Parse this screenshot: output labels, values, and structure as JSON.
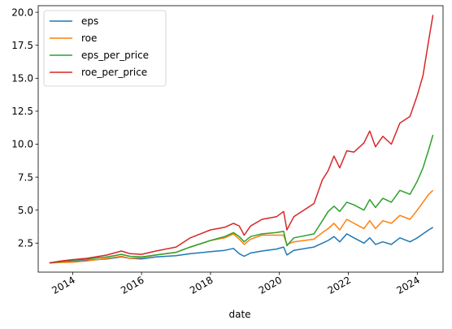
{
  "chart_data": {
    "type": "line",
    "xlabel": "date",
    "ylabel": "",
    "xlim": [
      "2013-01-01",
      "2024-09-30"
    ],
    "ylim": [
      0.3,
      20.5
    ],
    "x_ticks": [
      "2014-01-01",
      "2016-01-01",
      "2018-01-01",
      "2020-01-01",
      "2022-01-01",
      "2024-01-01"
    ],
    "x_tick_labels": [
      "2014",
      "2016",
      "2018",
      "2020",
      "2022",
      "2024"
    ],
    "y_ticks": [
      2.5,
      5.0,
      7.5,
      10.0,
      12.5,
      15.0,
      17.5,
      20.0
    ],
    "y_tick_labels": [
      "2.5",
      "5.0",
      "7.5",
      "10.0",
      "12.5",
      "15.0",
      "17.5",
      "20.0"
    ],
    "grid": false,
    "legend_position": "top-left",
    "series": [
      {
        "name": "eps",
        "color": "#1f77b4",
        "points": [
          [
            "2013-05-01",
            1.0
          ],
          [
            "2013-09-01",
            1.05
          ],
          [
            "2014-01-01",
            1.1
          ],
          [
            "2014-06-01",
            1.2
          ],
          [
            "2015-01-01",
            1.3
          ],
          [
            "2015-06-01",
            1.45
          ],
          [
            "2015-09-01",
            1.35
          ],
          [
            "2016-01-01",
            1.3
          ],
          [
            "2016-06-01",
            1.45
          ],
          [
            "2017-01-01",
            1.55
          ],
          [
            "2017-06-01",
            1.7
          ],
          [
            "2018-01-01",
            1.85
          ],
          [
            "2018-06-01",
            1.95
          ],
          [
            "2018-09-01",
            2.1
          ],
          [
            "2018-11-01",
            1.7
          ],
          [
            "2018-12-24",
            1.5
          ],
          [
            "2019-03-01",
            1.75
          ],
          [
            "2019-07-01",
            1.9
          ],
          [
            "2019-12-01",
            2.05
          ],
          [
            "2020-02-15",
            2.2
          ],
          [
            "2020-03-20",
            1.6
          ],
          [
            "2020-06-01",
            1.95
          ],
          [
            "2021-01-01",
            2.2
          ],
          [
            "2021-04-01",
            2.5
          ],
          [
            "2021-06-01",
            2.7
          ],
          [
            "2021-08-01",
            3.0
          ],
          [
            "2021-10-01",
            2.6
          ],
          [
            "2021-12-15",
            3.2
          ],
          [
            "2022-03-01",
            2.9
          ],
          [
            "2022-06-15",
            2.5
          ],
          [
            "2022-08-15",
            2.9
          ],
          [
            "2022-10-15",
            2.4
          ],
          [
            "2023-01-01",
            2.6
          ],
          [
            "2023-04-01",
            2.4
          ],
          [
            "2023-07-01",
            2.9
          ],
          [
            "2023-10-15",
            2.6
          ],
          [
            "2024-01-01",
            2.9
          ],
          [
            "2024-03-01",
            3.2
          ],
          [
            "2024-05-01",
            3.5
          ],
          [
            "2024-06-15",
            3.7
          ]
        ]
      },
      {
        "name": "roe",
        "color": "#ff7f0e",
        "points": [
          [
            "2013-05-01",
            1.0
          ],
          [
            "2013-09-01",
            1.03
          ],
          [
            "2014-01-01",
            1.05
          ],
          [
            "2014-06-01",
            1.15
          ],
          [
            "2015-01-01",
            1.35
          ],
          [
            "2015-06-01",
            1.5
          ],
          [
            "2015-09-01",
            1.35
          ],
          [
            "2016-01-01",
            1.4
          ],
          [
            "2016-06-01",
            1.6
          ],
          [
            "2017-01-01",
            1.8
          ],
          [
            "2017-06-01",
            2.2
          ],
          [
            "2018-01-01",
            2.7
          ],
          [
            "2018-06-01",
            2.9
          ],
          [
            "2018-09-01",
            3.2
          ],
          [
            "2018-11-01",
            2.8
          ],
          [
            "2018-12-24",
            2.4
          ],
          [
            "2019-03-01",
            2.8
          ],
          [
            "2019-07-01",
            3.1
          ],
          [
            "2019-12-01",
            3.1
          ],
          [
            "2020-02-15",
            3.1
          ],
          [
            "2020-03-20",
            2.4
          ],
          [
            "2020-06-01",
            2.6
          ],
          [
            "2021-01-01",
            2.8
          ],
          [
            "2021-04-01",
            3.3
          ],
          [
            "2021-06-01",
            3.6
          ],
          [
            "2021-08-01",
            4.0
          ],
          [
            "2021-10-01",
            3.5
          ],
          [
            "2021-12-15",
            4.3
          ],
          [
            "2022-03-01",
            4.0
          ],
          [
            "2022-06-15",
            3.6
          ],
          [
            "2022-08-15",
            4.2
          ],
          [
            "2022-10-15",
            3.6
          ],
          [
            "2023-01-01",
            4.2
          ],
          [
            "2023-04-01",
            4.0
          ],
          [
            "2023-07-01",
            4.6
          ],
          [
            "2023-10-15",
            4.3
          ],
          [
            "2024-01-01",
            5.0
          ],
          [
            "2024-03-01",
            5.6
          ],
          [
            "2024-05-01",
            6.2
          ],
          [
            "2024-06-15",
            6.5
          ]
        ]
      },
      {
        "name": "eps_per_price",
        "color": "#2ca02c",
        "points": [
          [
            "2013-05-01",
            1.0
          ],
          [
            "2013-09-01",
            1.1
          ],
          [
            "2014-01-01",
            1.2
          ],
          [
            "2014-06-01",
            1.3
          ],
          [
            "2015-01-01",
            1.45
          ],
          [
            "2015-06-01",
            1.65
          ],
          [
            "2015-09-01",
            1.5
          ],
          [
            "2016-01-01",
            1.45
          ],
          [
            "2016-06-01",
            1.6
          ],
          [
            "2017-01-01",
            1.8
          ],
          [
            "2017-06-01",
            2.2
          ],
          [
            "2018-01-01",
            2.7
          ],
          [
            "2018-06-01",
            3.0
          ],
          [
            "2018-09-01",
            3.3
          ],
          [
            "2018-11-01",
            3.0
          ],
          [
            "2018-12-24",
            2.6
          ],
          [
            "2019-03-01",
            3.0
          ],
          [
            "2019-07-01",
            3.2
          ],
          [
            "2019-12-01",
            3.3
          ],
          [
            "2020-02-15",
            3.4
          ],
          [
            "2020-03-20",
            2.3
          ],
          [
            "2020-06-01",
            2.9
          ],
          [
            "2021-01-01",
            3.2
          ],
          [
            "2021-04-01",
            4.2
          ],
          [
            "2021-06-01",
            4.9
          ],
          [
            "2021-08-01",
            5.3
          ],
          [
            "2021-10-01",
            4.9
          ],
          [
            "2021-12-15",
            5.6
          ],
          [
            "2022-03-01",
            5.4
          ],
          [
            "2022-06-15",
            5.0
          ],
          [
            "2022-08-15",
            5.8
          ],
          [
            "2022-10-15",
            5.2
          ],
          [
            "2023-01-01",
            5.9
          ],
          [
            "2023-04-01",
            5.6
          ],
          [
            "2023-07-01",
            6.5
          ],
          [
            "2023-10-15",
            6.2
          ],
          [
            "2024-01-01",
            7.2
          ],
          [
            "2024-03-01",
            8.2
          ],
          [
            "2024-05-01",
            9.6
          ],
          [
            "2024-06-15",
            10.7
          ]
        ]
      },
      {
        "name": "roe_per_price",
        "color": "#d62728",
        "points": [
          [
            "2013-05-01",
            1.0
          ],
          [
            "2013-09-01",
            1.15
          ],
          [
            "2014-01-01",
            1.25
          ],
          [
            "2014-06-01",
            1.35
          ],
          [
            "2015-01-01",
            1.6
          ],
          [
            "2015-06-01",
            1.9
          ],
          [
            "2015-09-01",
            1.7
          ],
          [
            "2016-01-01",
            1.65
          ],
          [
            "2016-06-01",
            1.9
          ],
          [
            "2017-01-01",
            2.2
          ],
          [
            "2017-06-01",
            2.9
          ],
          [
            "2018-01-01",
            3.5
          ],
          [
            "2018-06-01",
            3.7
          ],
          [
            "2018-09-01",
            4.0
          ],
          [
            "2018-11-01",
            3.8
          ],
          [
            "2018-12-24",
            3.1
          ],
          [
            "2019-03-01",
            3.8
          ],
          [
            "2019-07-01",
            4.3
          ],
          [
            "2019-12-01",
            4.5
          ],
          [
            "2020-02-15",
            4.9
          ],
          [
            "2020-03-20",
            3.5
          ],
          [
            "2020-06-01",
            4.5
          ],
          [
            "2021-01-01",
            5.5
          ],
          [
            "2021-04-01",
            7.3
          ],
          [
            "2021-06-01",
            8.0
          ],
          [
            "2021-08-01",
            9.1
          ],
          [
            "2021-10-01",
            8.2
          ],
          [
            "2021-12-15",
            9.5
          ],
          [
            "2022-03-01",
            9.4
          ],
          [
            "2022-06-15",
            10.1
          ],
          [
            "2022-08-15",
            11.0
          ],
          [
            "2022-10-15",
            9.8
          ],
          [
            "2023-01-01",
            10.6
          ],
          [
            "2023-04-01",
            10.0
          ],
          [
            "2023-07-01",
            11.6
          ],
          [
            "2023-10-15",
            12.1
          ],
          [
            "2024-01-01",
            13.7
          ],
          [
            "2024-03-01",
            15.2
          ],
          [
            "2024-05-01",
            17.9
          ],
          [
            "2024-06-15",
            19.8
          ]
        ]
      }
    ]
  }
}
